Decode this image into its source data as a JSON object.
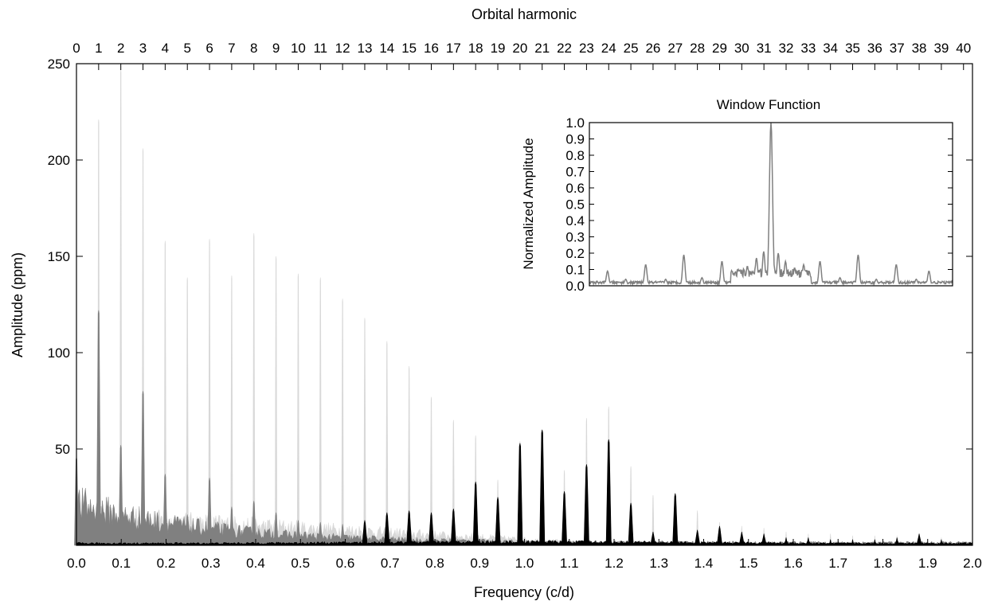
{
  "chart_data": [
    {
      "type": "area",
      "title": "",
      "xlabel": "Frequency (c/d)",
      "ylabel": "Amplitude (ppm)",
      "x2label": "Orbital harmonic",
      "xlim": [
        0.0,
        2.0
      ],
      "ylim": [
        0,
        250
      ],
      "x2lim": [
        0,
        40
      ],
      "x_ticks": [
        "0.0",
        "0.1",
        "0.2",
        "0.3",
        "0.4",
        "0.5",
        "0.6",
        "0.7",
        "0.8",
        "0.9",
        "1.0",
        "1.1",
        "1.2",
        "1.3",
        "1.4",
        "1.5",
        "1.6",
        "1.7",
        "1.8",
        "1.9",
        "2.0"
      ],
      "y_ticks": [
        "50",
        "100",
        "150",
        "200",
        "250"
      ],
      "x2_ticks": [
        "0",
        "1",
        "2",
        "3",
        "4",
        "5",
        "6",
        "7",
        "8",
        "9",
        "10",
        "11",
        "12",
        "13",
        "14",
        "15",
        "16",
        "17",
        "18",
        "19",
        "20",
        "21",
        "22",
        "23",
        "24",
        "25",
        "26",
        "27",
        "28",
        "29",
        "30",
        "31",
        "32",
        "33",
        "34",
        "35",
        "36",
        "37",
        "38",
        "39",
        "40"
      ],
      "grid": false,
      "legend": "none",
      "colors": {
        "light": "#d8d8d8",
        "mid": "#808080",
        "dark": "#000000"
      },
      "harmonic_spacing_cd": 0.0495,
      "series": [
        {
          "peaks": [
            {
              "h": 1,
              "y": 221
            },
            {
              "h": 2,
              "y": 247
            },
            {
              "h": 3,
              "y": 206
            },
            {
              "h": 4,
              "y": 158
            },
            {
              "h": 5,
              "y": 139
            },
            {
              "h": 6,
              "y": 159
            },
            {
              "h": 7,
              "y": 140
            },
            {
              "h": 8,
              "y": 162
            },
            {
              "h": 9,
              "y": 150
            },
            {
              "h": 10,
              "y": 141
            },
            {
              "h": 11,
              "y": 139
            },
            {
              "h": 12,
              "y": 128
            },
            {
              "h": 13,
              "y": 118
            },
            {
              "h": 14,
              "y": 106
            },
            {
              "h": 15,
              "y": 93
            },
            {
              "h": 16,
              "y": 77
            },
            {
              "h": 17,
              "y": 65
            },
            {
              "h": 18,
              "y": 57
            },
            {
              "h": 19,
              "y": 34
            },
            {
              "h": 20,
              "y": 54
            },
            {
              "h": 21,
              "y": 59
            },
            {
              "h": 22,
              "y": 39
            },
            {
              "h": 23,
              "y": 66
            },
            {
              "h": 24,
              "y": 72
            },
            {
              "h": 25,
              "y": 41
            },
            {
              "h": 26,
              "y": 26
            },
            {
              "h": 27,
              "y": 21
            },
            {
              "h": 28,
              "y": 18
            },
            {
              "h": 29,
              "y": 12
            },
            {
              "h": 30,
              "y": 10
            },
            {
              "h": 31,
              "y": 9
            },
            {
              "h": 32,
              "y": 7
            },
            {
              "h": 33,
              "y": 6
            },
            {
              "h": 34,
              "y": 6
            },
            {
              "h": 35,
              "y": 5
            },
            {
              "h": 36,
              "y": 5
            },
            {
              "h": 37,
              "y": 5
            },
            {
              "h": 38,
              "y": 6
            },
            {
              "h": 39,
              "y": 4
            }
          ],
          "noise_level": 22,
          "noise_extent": 1.25
        },
        {
          "peaks": [
            {
              "h": 0,
              "y": 46
            },
            {
              "h": 1,
              "y": 122
            },
            {
              "h": 2,
              "y": 52
            },
            {
              "h": 3,
              "y": 80
            },
            {
              "h": 4,
              "y": 37
            },
            {
              "h": 5,
              "y": 16
            },
            {
              "h": 6,
              "y": 35
            },
            {
              "h": 7,
              "y": 20
            },
            {
              "h": 8,
              "y": 23
            },
            {
              "h": 9,
              "y": 17
            },
            {
              "h": 10,
              "y": 13
            },
            {
              "h": 11,
              "y": 12
            },
            {
              "h": 12,
              "y": 11
            },
            {
              "h": 13,
              "y": 10
            },
            {
              "h": 14,
              "y": 9
            },
            {
              "h": 15,
              "y": 8
            },
            {
              "h": 16,
              "y": 7
            },
            {
              "h": 17,
              "y": 6
            }
          ],
          "noise_level": 30,
          "noise_extent": 0.85
        },
        {
          "peaks": [
            {
              "h": 13,
              "y": 13
            },
            {
              "h": 14,
              "y": 17
            },
            {
              "h": 15,
              "y": 18
            },
            {
              "h": 16,
              "y": 17
            },
            {
              "h": 17,
              "y": 19
            },
            {
              "h": 18,
              "y": 33
            },
            {
              "h": 19,
              "y": 25
            },
            {
              "h": 20,
              "y": 53
            },
            {
              "h": 21,
              "y": 60
            },
            {
              "h": 22,
              "y": 28
            },
            {
              "h": 23,
              "y": 42
            },
            {
              "h": 24,
              "y": 55
            },
            {
              "h": 25,
              "y": 22
            },
            {
              "h": 26,
              "y": 7
            },
            {
              "h": 27,
              "y": 27
            },
            {
              "h": 28,
              "y": 8
            },
            {
              "h": 29,
              "y": 10
            },
            {
              "h": 30,
              "y": 7
            },
            {
              "h": 31,
              "y": 6
            },
            {
              "h": 32,
              "y": 4
            },
            {
              "h": 33,
              "y": 4
            },
            {
              "h": 34,
              "y": 3
            },
            {
              "h": 35,
              "y": 3
            },
            {
              "h": 36,
              "y": 3
            },
            {
              "h": 37,
              "y": 4
            },
            {
              "h": 38,
              "y": 6
            },
            {
              "h": 39,
              "y": 3
            }
          ],
          "noise_level": 4,
          "noise_extent": 2.0
        }
      ]
    },
    {
      "type": "line",
      "title": "Window Function",
      "xlabel": "",
      "ylabel": "Normalized Amplitude",
      "ylim": [
        0.0,
        1.0
      ],
      "y_ticks": [
        "0.0",
        "0.1",
        "0.2",
        "0.3",
        "0.4",
        "0.5",
        "0.6",
        "0.7",
        "0.8",
        "0.9",
        "1.0"
      ],
      "x_ticks_shown": false,
      "grid": false,
      "color": "#808080",
      "x_range": [
        -1.0,
        1.0
      ],
      "peaks": [
        {
          "x": 0.0,
          "y": 1.0
        },
        {
          "x": -0.04,
          "y": 0.21
        },
        {
          "x": 0.04,
          "y": 0.2
        },
        {
          "x": -0.08,
          "y": 0.17
        },
        {
          "x": 0.08,
          "y": 0.15
        },
        {
          "x": -0.13,
          "y": 0.12
        },
        {
          "x": 0.13,
          "y": 0.11
        },
        {
          "x": -0.18,
          "y": 0.1
        },
        {
          "x": 0.18,
          "y": 0.13
        },
        {
          "x": -0.27,
          "y": 0.15
        },
        {
          "x": 0.27,
          "y": 0.15
        },
        {
          "x": -0.48,
          "y": 0.19
        },
        {
          "x": 0.48,
          "y": 0.19
        },
        {
          "x": -0.69,
          "y": 0.13
        },
        {
          "x": 0.69,
          "y": 0.13
        },
        {
          "x": -0.9,
          "y": 0.09
        },
        {
          "x": 0.87,
          "y": 0.09
        },
        {
          "x": -0.38,
          "y": 0.05
        },
        {
          "x": 0.38,
          "y": 0.05
        },
        {
          "x": -0.58,
          "y": 0.04
        },
        {
          "x": 0.58,
          "y": 0.04
        },
        {
          "x": -0.8,
          "y": 0.04
        },
        {
          "x": 0.8,
          "y": 0.04
        }
      ],
      "baseline": 0.02
    }
  ]
}
